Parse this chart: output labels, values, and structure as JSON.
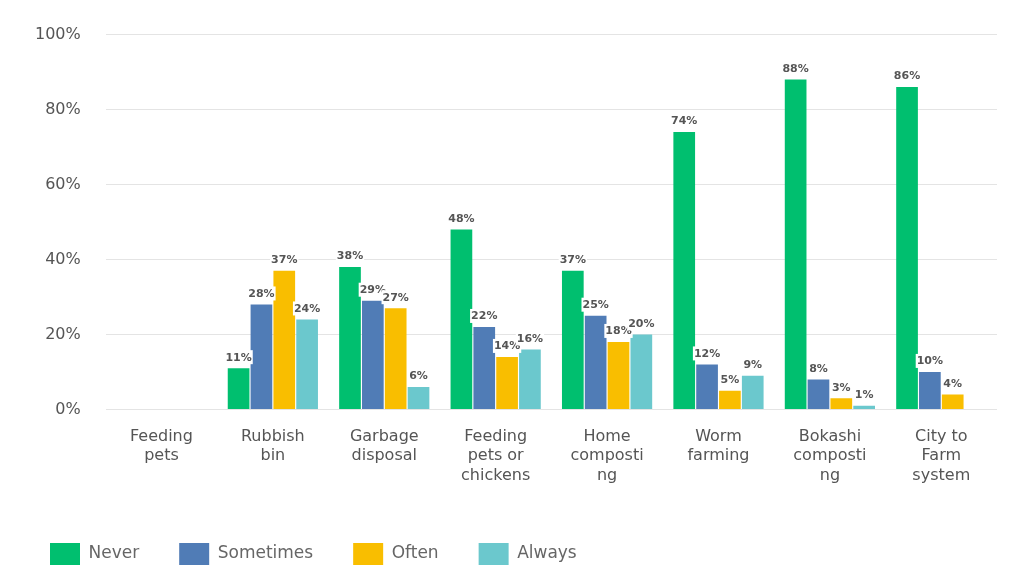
{
  "chart_data": {
    "type": "bar",
    "categories": [
      "Feeding pets",
      "Rubbish bin",
      "Garbage disposal",
      "Feeding pets or chickens",
      "Home composting",
      "Worm farming",
      "Bokashi composting",
      "City to Farm system"
    ],
    "series": [
      {
        "name": "Never",
        "color": "#00bf6f",
        "values": [
          null,
          11,
          38,
          48,
          37,
          74,
          88,
          86
        ],
        "value_labels": [
          null,
          "11%",
          "38%",
          "48%",
          "37%",
          "74%",
          "88%",
          "86%"
        ]
      },
      {
        "name": "Sometimes",
        "color": "#507cb6",
        "values": [
          null,
          28,
          29,
          22,
          25,
          12,
          8,
          10
        ],
        "value_labels": [
          null,
          "28%",
          "29%",
          "22%",
          "25%",
          "12%",
          "8%",
          "10%"
        ]
      },
      {
        "name": "Often",
        "color": "#f9be00",
        "values": [
          null,
          37,
          27,
          14,
          18,
          5,
          3,
          4
        ],
        "value_labels": [
          null,
          "37%",
          "27%",
          "14%",
          "18%",
          "5%",
          "3%",
          "4%"
        ]
      },
      {
        "name": "Always",
        "color": "#6bc8cd",
        "values": [
          null,
          24,
          6,
          16,
          20,
          9,
          1,
          null
        ],
        "value_labels": [
          null,
          "24%",
          "6%",
          "16%",
          "20%",
          "9%",
          "1%",
          null
        ]
      }
    ],
    "ylim": [
      0,
      100
    ],
    "yticks": [
      {
        "value": 0,
        "label": "0%"
      },
      {
        "value": 20,
        "label": "20%"
      },
      {
        "value": 40,
        "label": "40%"
      },
      {
        "value": 60,
        "label": "60%"
      },
      {
        "value": 80,
        "label": "80%"
      },
      {
        "value": 100,
        "label": "100%"
      }
    ],
    "grid": "y",
    "legend": "bottom left"
  }
}
